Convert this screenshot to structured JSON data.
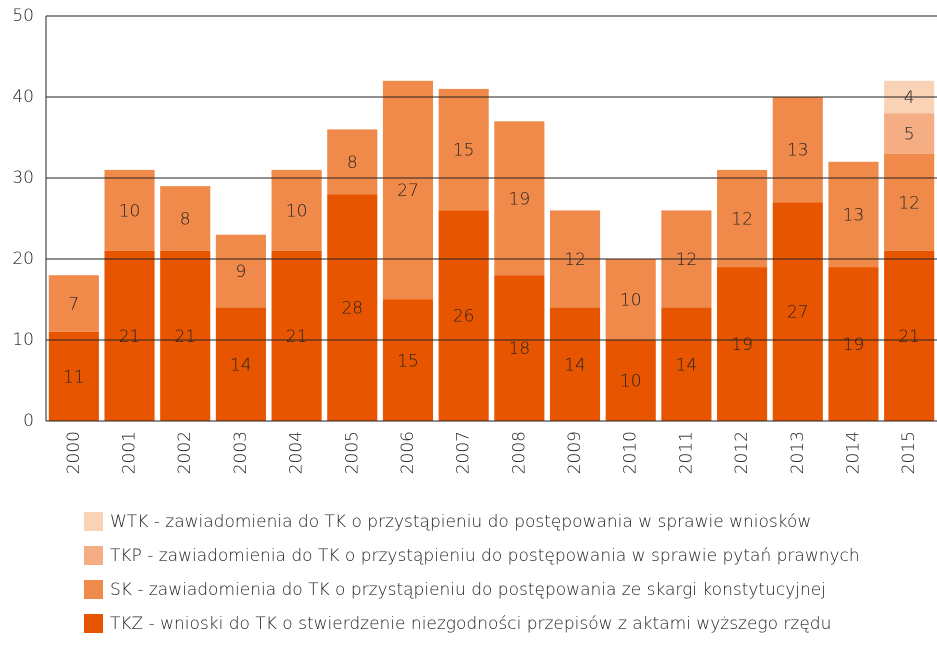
{
  "chart_data": {
    "type": "stacked_bar",
    "categories": [
      "2000",
      "2001",
      "2002",
      "2003",
      "2004",
      "2005",
      "2006",
      "2007",
      "2008",
      "2009",
      "2010",
      "2011",
      "2012",
      "2013",
      "2014",
      "2015"
    ],
    "series": [
      {
        "name": "TKZ - wnioski do TK o stwierdzenie niezgodności przepisów z aktami wyższego rzędu",
        "color": "#e85500",
        "values": [
          11,
          21,
          21,
          14,
          21,
          28,
          15,
          26,
          18,
          14,
          10,
          14,
          19,
          27,
          19,
          21
        ]
      },
      {
        "name": "SK - zawiadomienia do TK o przystąpieniu do postępowania ze skargi konstytucyjnej",
        "color": "#f08a4b",
        "values": [
          7,
          10,
          8,
          9,
          10,
          8,
          27,
          15,
          19,
          12,
          10,
          12,
          12,
          13,
          13,
          12
        ]
      },
      {
        "name": "TKP - zawiadomienia do TK o przystąpieniu do postępowania w sprawie pytań prawnych",
        "color": "#f5ad83",
        "values": [
          null,
          null,
          null,
          null,
          null,
          null,
          null,
          null,
          null,
          null,
          null,
          null,
          null,
          null,
          null,
          5
        ]
      },
      {
        "name": "WTK - zawiadomienia do TK o przystąpieniu do postępowania w sprawie wniosków",
        "color": "#fad3b6",
        "values": [
          null,
          null,
          null,
          null,
          null,
          null,
          null,
          null,
          null,
          null,
          null,
          null,
          null,
          null,
          null,
          4
        ]
      }
    ],
    "ylim": [
      0,
      50
    ],
    "yticks": [
      0,
      10,
      20,
      30,
      40,
      50
    ],
    "grid": true
  }
}
